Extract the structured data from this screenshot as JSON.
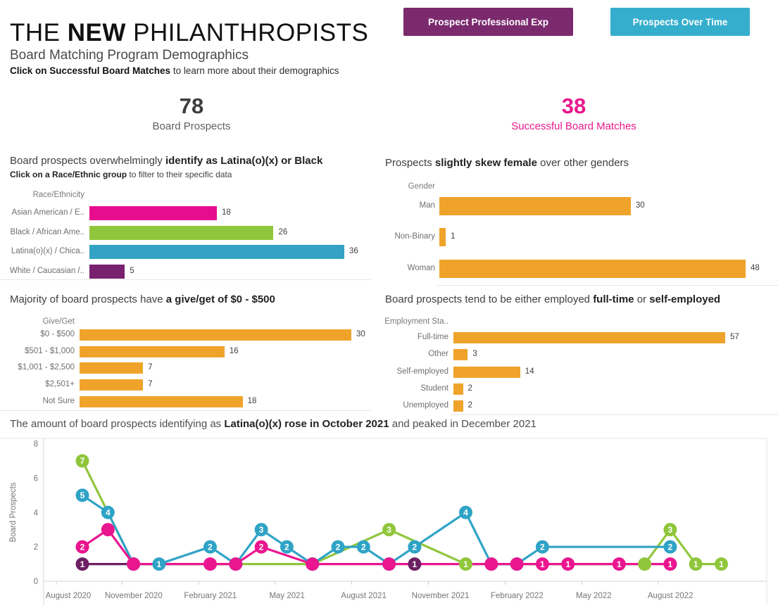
{
  "header": {
    "title": [
      {
        "t": "THE ",
        "b": false
      },
      {
        "t": "NEW",
        "b": true
      },
      {
        "t": " PHILANTHROPISTS",
        "b": false
      }
    ],
    "subtitle": "Board Matching Program Demographics",
    "instruction": [
      {
        "t": "Click on Successful Board Matches",
        "b": true
      },
      {
        "t": " to learn more about their demographics",
        "b": false
      }
    ]
  },
  "buttons": [
    {
      "label": "Prospect Professional Exp",
      "bg": "#7B2A6E"
    },
    {
      "label": "Prospects Over Time",
      "bg": "#35AECD"
    }
  ],
  "kpis": [
    {
      "value": "78",
      "label": "Board Prospects",
      "value_color": "#3d3d3d",
      "label_color": "#5f5f5f"
    },
    {
      "value": "38",
      "label": "Successful Board Matches",
      "value_color": "#E9198B",
      "label_color": "#E9198B"
    }
  ],
  "chart_data": {
    "race": {
      "type": "bar",
      "title": [
        {
          "t": "Board prospects overwhelmingly ",
          "b": false
        },
        {
          "t": "identify as Latina(o)(x) or Black",
          "b": true
        }
      ],
      "subtitle": [
        {
          "t": "Click on a Race/Ethnic group",
          "b": true
        },
        {
          "t": " to filter to their specific data",
          "b": false
        }
      ],
      "axis_header": "Race/Ethnicity",
      "categories": [
        "Asian American / E..",
        "Black / African Ame..",
        "Latina(o)(x) / Chica..",
        "White / Caucasian /.."
      ],
      "values": [
        18,
        26,
        36,
        5
      ],
      "colors": [
        "#E60E8D",
        "#90C63C",
        "#33A2C4",
        "#77216F"
      ],
      "xmax": 36
    },
    "gender": {
      "type": "bar",
      "title": [
        {
          "t": "Prospects ",
          "b": false
        },
        {
          "t": "slightly skew female",
          "b": true
        },
        {
          "t": " over other genders",
          "b": false
        }
      ],
      "axis_header": "Gender",
      "categories": [
        "Man",
        "Non-Binary",
        "Woman"
      ],
      "values": [
        30,
        1,
        48
      ],
      "colors": "#F0A32A",
      "xmax": 48
    },
    "give_get": {
      "type": "bar",
      "title": [
        {
          "t": "Majority of board prospects have ",
          "b": false
        },
        {
          "t": "a give/get of $0 - $500",
          "b": true
        }
      ],
      "axis_header": "Give/Get",
      "categories": [
        "$0 - $500",
        "$501 - $1,000",
        "$1,001 - $2,500",
        "$2,501+",
        "Not Sure"
      ],
      "values": [
        30,
        16,
        7,
        7,
        18
      ],
      "colors": "#F0A32A",
      "xmax": 30
    },
    "employment": {
      "type": "bar",
      "title": [
        {
          "t": "Board prospects tend to be either employed ",
          "b": false
        },
        {
          "t": "full-time",
          "b": true
        },
        {
          "t": " or ",
          "b": false
        },
        {
          "t": "self-employed",
          "b": true
        }
      ],
      "axis_header": "Employment Sta..",
      "categories": [
        "Full-time",
        "Other",
        "Self-employed",
        "Student",
        "Unemployed"
      ],
      "values": [
        57,
        3,
        14,
        2,
        2
      ],
      "colors": "#F0A32A",
      "xmax": 57
    },
    "timeline": {
      "type": "line",
      "title": [
        {
          "t": "The amount of board prospects identifying as ",
          "b": false
        },
        {
          "t": "Latina(o)(x) rose in October 2021",
          "b": true
        },
        {
          "t": " and peaked in December 2021",
          "b": false
        }
      ],
      "ylabel": "Board Prospects",
      "yticks": [
        0,
        2,
        4,
        6,
        8
      ],
      "ylim": [
        0,
        8
      ],
      "x_months_start": "August 2020",
      "xtick_labels": [
        "August 2020",
        "November 2020",
        "February 2021",
        "May 2021",
        "August 2021",
        "November 2021",
        "February 2022",
        "May 2022",
        "August 2022"
      ],
      "xtick_months": [
        0,
        3,
        6,
        9,
        12,
        15,
        18,
        21,
        24
      ],
      "series": [
        {
          "name": "White / Caucasian",
          "color": "#6E2064",
          "segments": [
            [
              [
                0,
                1,
                "1"
              ],
              [
                2,
                1,
                null
              ]
            ],
            [
              [
                13,
                1,
                "1"
              ]
            ]
          ]
        },
        {
          "name": "Black / African American",
          "color": "#90C63C",
          "segments": [
            [
              [
                0,
                7,
                "7"
              ],
              [
                2,
                1,
                null
              ],
              [
                9,
                1,
                null
              ],
              [
                12,
                3,
                "3"
              ],
              [
                15,
                1,
                "1"
              ],
              [
                22,
                1,
                null
              ],
              [
                23,
                3,
                "3"
              ],
              [
                24,
                1,
                "1"
              ],
              [
                25,
                1,
                "1"
              ]
            ]
          ]
        },
        {
          "name": "Latina(o)(x)",
          "color": "#2FA3C6",
          "segments": [
            [
              [
                0,
                5,
                "5"
              ],
              [
                1,
                4,
                "4"
              ],
              [
                2,
                1,
                null
              ],
              [
                3,
                1,
                "1"
              ],
              [
                5,
                2,
                "2"
              ],
              [
                6,
                1,
                null
              ],
              [
                7,
                3,
                "3"
              ],
              [
                8,
                2,
                "2"
              ],
              [
                9,
                1,
                null
              ],
              [
                10,
                2,
                "2"
              ],
              [
                11,
                2,
                "2"
              ],
              [
                12,
                1,
                null
              ],
              [
                13,
                2,
                "2"
              ],
              [
                15,
                4,
                "4"
              ],
              [
                16,
                1,
                null
              ],
              [
                17,
                1,
                null
              ],
              [
                18,
                2,
                "2"
              ],
              [
                23,
                2,
                "2"
              ]
            ]
          ]
        },
        {
          "name": "Asian American",
          "color": "#EA168F",
          "segments": [
            [
              [
                0,
                2,
                "2"
              ],
              [
                1,
                3,
                null
              ],
              [
                2,
                1,
                null
              ],
              [
                5,
                1,
                null
              ],
              [
                6,
                1,
                null
              ],
              [
                7,
                2,
                "2"
              ],
              [
                9,
                1,
                null
              ],
              [
                12,
                1,
                null
              ],
              [
                16,
                1,
                null
              ],
              [
                17,
                1,
                null
              ],
              [
                18,
                1,
                "1"
              ],
              [
                19,
                1,
                "1"
              ],
              [
                21,
                1,
                "1"
              ],
              [
                23,
                1,
                "1"
              ]
            ]
          ]
        }
      ]
    }
  }
}
